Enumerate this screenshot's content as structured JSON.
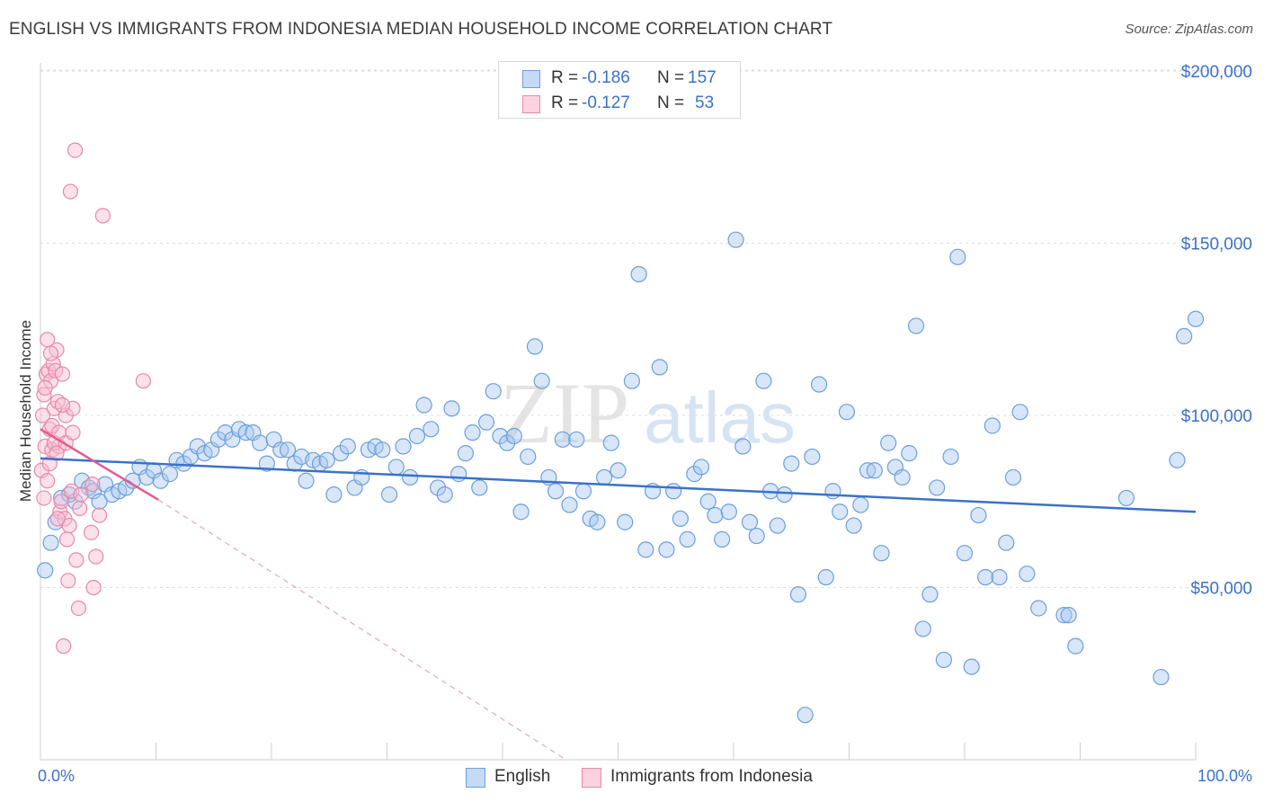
{
  "title": "ENGLISH VS IMMIGRANTS FROM INDONESIA MEDIAN HOUSEHOLD INCOME CORRELATION CHART",
  "source": "Source: ZipAtlas.com",
  "watermark": {
    "zip": "ZIP",
    "atlas": "atlas"
  },
  "legend_top": [
    {
      "r_label": "R =",
      "r_value": "-0.186",
      "n_label": "N =",
      "n_value": "157",
      "color": "#a9c8f0",
      "border": "#6c9fdc"
    },
    {
      "r_label": "R =",
      "r_value": "-0.127",
      "n_label": "N =",
      "n_value": "53",
      "color": "#f8bdd0",
      "border": "#e889a8"
    }
  ],
  "legend_bottom": [
    {
      "label": "English",
      "color": "#a9c8f0",
      "border": "#6c9fdc"
    },
    {
      "label": "Immigrants from Indonesia",
      "color": "#f8bdd0",
      "border": "#e889a8"
    }
  ],
  "colors": {
    "blue": "#3a72c8",
    "blue_fill": "#a9c8f0",
    "pink": "#e25b8f",
    "pink_fill": "#f8bdd0",
    "grid": "#d9d9d9"
  },
  "chart_data": {
    "type": "scatter",
    "title": "ENGLISH VS IMMIGRANTS FROM INDONESIA MEDIAN HOUSEHOLD INCOME CORRELATION CHART",
    "xlabel": "",
    "ylabel": "Median Household Income",
    "xlim": [
      0,
      100
    ],
    "ylim": [
      0,
      210000
    ],
    "x_tick_labels": [
      "0.0%",
      "100.0%"
    ],
    "y_ticks": [
      50000,
      100000,
      150000,
      200000
    ],
    "y_tick_labels": [
      "$50,000",
      "$100,000",
      "$150,000",
      "$200,000"
    ],
    "grid": true,
    "legend_position": "top-center",
    "series": [
      {
        "name": "English",
        "color": "#3a72c8",
        "trend": {
          "x": [
            0,
            100
          ],
          "y": [
            87500,
            72000
          ]
        },
        "points": [
          [
            0.4,
            55000
          ],
          [
            0.9,
            63000
          ],
          [
            1.3,
            69000
          ],
          [
            1.8,
            76000
          ],
          [
            2.5,
            77000
          ],
          [
            3.0,
            75000
          ],
          [
            3.6,
            81000
          ],
          [
            4.2,
            79000
          ],
          [
            4.6,
            78000
          ],
          [
            5.1,
            75000
          ],
          [
            5.6,
            80000
          ],
          [
            6.2,
            77000
          ],
          [
            6.8,
            78000
          ],
          [
            7.4,
            79000
          ],
          [
            8.0,
            81000
          ],
          [
            8.6,
            85000
          ],
          [
            9.2,
            82000
          ],
          [
            9.8,
            84000
          ],
          [
            10.4,
            81000
          ],
          [
            11.2,
            83000
          ],
          [
            11.8,
            87000
          ],
          [
            12.4,
            86000
          ],
          [
            13.0,
            88000
          ],
          [
            13.6,
            91000
          ],
          [
            14.2,
            89000
          ],
          [
            14.8,
            90000
          ],
          [
            15.4,
            93000
          ],
          [
            16.0,
            95000
          ],
          [
            16.6,
            93000
          ],
          [
            17.2,
            96000
          ],
          [
            17.8,
            95000
          ],
          [
            18.4,
            95000
          ],
          [
            19.0,
            92000
          ],
          [
            19.6,
            86000
          ],
          [
            20.2,
            93000
          ],
          [
            20.8,
            90000
          ],
          [
            21.4,
            90000
          ],
          [
            22.0,
            86000
          ],
          [
            22.6,
            88000
          ],
          [
            23.0,
            81000
          ],
          [
            23.6,
            87000
          ],
          [
            24.2,
            86000
          ],
          [
            24.8,
            87000
          ],
          [
            25.4,
            77000
          ],
          [
            26.0,
            89000
          ],
          [
            26.6,
            91000
          ],
          [
            27.2,
            79000
          ],
          [
            27.8,
            82000
          ],
          [
            28.4,
            90000
          ],
          [
            29.0,
            91000
          ],
          [
            29.6,
            90000
          ],
          [
            30.2,
            77000
          ],
          [
            30.8,
            85000
          ],
          [
            31.4,
            91000
          ],
          [
            32.0,
            82000
          ],
          [
            32.6,
            94000
          ],
          [
            33.2,
            103000
          ],
          [
            33.8,
            96000
          ],
          [
            34.4,
            79000
          ],
          [
            35.0,
            77000
          ],
          [
            35.6,
            102000
          ],
          [
            36.2,
            83000
          ],
          [
            36.8,
            89000
          ],
          [
            37.4,
            95000
          ],
          [
            38.0,
            79000
          ],
          [
            38.6,
            98000
          ],
          [
            39.2,
            107000
          ],
          [
            39.8,
            94000
          ],
          [
            40.4,
            92000
          ],
          [
            41.0,
            94000
          ],
          [
            41.6,
            72000
          ],
          [
            42.2,
            88000
          ],
          [
            42.8,
            120000
          ],
          [
            43.4,
            110000
          ],
          [
            44.0,
            82000
          ],
          [
            44.6,
            78000
          ],
          [
            45.2,
            93000
          ],
          [
            45.8,
            74000
          ],
          [
            46.4,
            93000
          ],
          [
            47.0,
            78000
          ],
          [
            47.6,
            70000
          ],
          [
            48.2,
            69000
          ],
          [
            48.8,
            82000
          ],
          [
            49.4,
            92000
          ],
          [
            50.0,
            84000
          ],
          [
            50.6,
            69000
          ],
          [
            51.2,
            110000
          ],
          [
            51.8,
            141000
          ],
          [
            52.4,
            61000
          ],
          [
            53.0,
            78000
          ],
          [
            53.6,
            114000
          ],
          [
            54.2,
            61000
          ],
          [
            54.8,
            78000
          ],
          [
            55.4,
            70000
          ],
          [
            56.0,
            64000
          ],
          [
            56.6,
            83000
          ],
          [
            57.2,
            85000
          ],
          [
            57.8,
            75000
          ],
          [
            58.4,
            71000
          ],
          [
            59.0,
            64000
          ],
          [
            59.6,
            72000
          ],
          [
            60.2,
            151000
          ],
          [
            60.8,
            91000
          ],
          [
            61.4,
            69000
          ],
          [
            62.0,
            65000
          ],
          [
            62.6,
            110000
          ],
          [
            63.2,
            78000
          ],
          [
            63.8,
            68000
          ],
          [
            64.4,
            77000
          ],
          [
            65.0,
            86000
          ],
          [
            65.6,
            48000
          ],
          [
            66.2,
            13000
          ],
          [
            66.8,
            88000
          ],
          [
            67.4,
            109000
          ],
          [
            68.0,
            53000
          ],
          [
            68.6,
            78000
          ],
          [
            69.2,
            72000
          ],
          [
            69.8,
            101000
          ],
          [
            70.4,
            68000
          ],
          [
            71.0,
            74000
          ],
          [
            71.6,
            84000
          ],
          [
            72.2,
            84000
          ],
          [
            72.8,
            60000
          ],
          [
            73.4,
            92000
          ],
          [
            74.0,
            85000
          ],
          [
            74.6,
            82000
          ],
          [
            75.2,
            89000
          ],
          [
            75.8,
            126000
          ],
          [
            76.4,
            38000
          ],
          [
            77.0,
            48000
          ],
          [
            77.6,
            79000
          ],
          [
            78.2,
            29000
          ],
          [
            78.8,
            88000
          ],
          [
            79.4,
            146000
          ],
          [
            80.0,
            60000
          ],
          [
            80.6,
            27000
          ],
          [
            81.2,
            71000
          ],
          [
            81.8,
            53000
          ],
          [
            82.4,
            97000
          ],
          [
            83.0,
            53000
          ],
          [
            83.6,
            63000
          ],
          [
            84.2,
            82000
          ],
          [
            84.8,
            101000
          ],
          [
            85.4,
            54000
          ],
          [
            86.4,
            44000
          ],
          [
            88.6,
            42000
          ],
          [
            89.0,
            42000
          ],
          [
            89.6,
            33000
          ],
          [
            94.0,
            76000
          ],
          [
            97.0,
            24000
          ],
          [
            98.4,
            87000
          ],
          [
            99.0,
            123000
          ],
          [
            100.0,
            128000
          ]
        ]
      },
      {
        "name": "Immigrants from Indonesia",
        "color": "#e25b8f",
        "trend": {
          "x": [
            0,
            10.2
          ],
          "y": [
            96000,
            75500
          ]
        },
        "trend_extended": {
          "x": [
            10.2,
            45.5
          ],
          "y": [
            75500,
            0
          ]
        },
        "points": [
          [
            0.1,
            84000
          ],
          [
            0.2,
            100000
          ],
          [
            0.3,
            106000
          ],
          [
            0.4,
            91000
          ],
          [
            0.5,
            112000
          ],
          [
            0.6,
            122000
          ],
          [
            0.7,
            113000
          ],
          [
            0.8,
            96000
          ],
          [
            0.9,
            110000
          ],
          [
            1.0,
            90000
          ],
          [
            1.1,
            115000
          ],
          [
            1.2,
            102000
          ],
          [
            1.3,
            113000
          ],
          [
            1.4,
            119000
          ],
          [
            1.5,
            104000
          ],
          [
            1.6,
            91000
          ],
          [
            1.7,
            72000
          ],
          [
            1.8,
            75000
          ],
          [
            1.9,
            112000
          ],
          [
            2.0,
            33000
          ],
          [
            2.1,
            70000
          ],
          [
            2.2,
            100000
          ],
          [
            2.3,
            64000
          ],
          [
            2.4,
            52000
          ],
          [
            2.5,
            68000
          ],
          [
            2.6,
            165000
          ],
          [
            2.7,
            78000
          ],
          [
            2.8,
            102000
          ],
          [
            3.0,
            177000
          ],
          [
            3.1,
            58000
          ],
          [
            3.3,
            44000
          ],
          [
            3.4,
            73000
          ],
          [
            3.5,
            77000
          ],
          [
            4.4,
            66000
          ],
          [
            4.5,
            80000
          ],
          [
            4.6,
            50000
          ],
          [
            4.8,
            59000
          ],
          [
            5.1,
            71000
          ],
          [
            5.4,
            158000
          ],
          [
            0.3,
            76000
          ],
          [
            0.6,
            81000
          ],
          [
            0.8,
            86000
          ],
          [
            1.0,
            97000
          ],
          [
            1.2,
            92000
          ],
          [
            1.4,
            89000
          ],
          [
            1.6,
            95000
          ],
          [
            1.9,
            103000
          ],
          [
            2.2,
            92000
          ],
          [
            0.4,
            108000
          ],
          [
            0.9,
            118000
          ],
          [
            1.5,
            70000
          ],
          [
            2.8,
            95000
          ],
          [
            8.9,
            110000
          ]
        ]
      }
    ]
  }
}
